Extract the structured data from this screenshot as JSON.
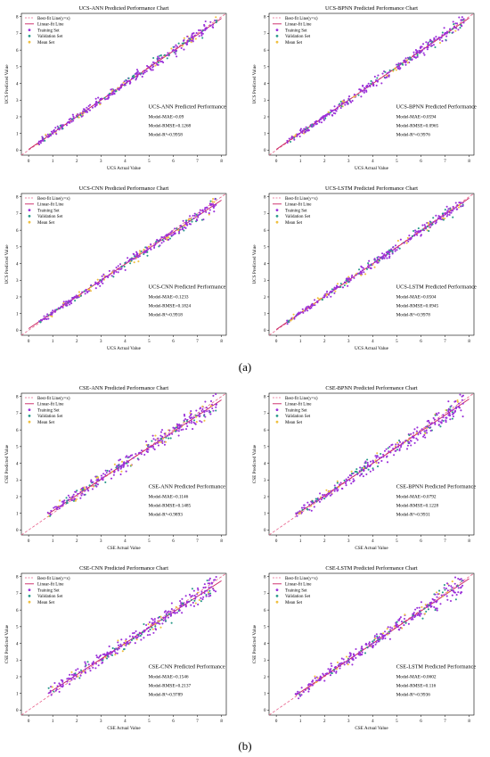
{
  "figure": {
    "group_a_label": "(a)",
    "group_b_label": "(b)"
  },
  "legend_labels": [
    "Best-fit Line(y=x)",
    "Linear-fit Line",
    "Training Set",
    "Validation Set",
    "Mean Set"
  ],
  "colors": {
    "best_fit": "#e8608a",
    "linear_fit": "#c82060",
    "training": "#9b30d9",
    "validation": "#2a9a8a",
    "mean": "#f0c040"
  },
  "chart_data": [
    {
      "type": "scatter",
      "title": "UCS-ANN Predicted Performance Chart",
      "xlabel": "UCS Actual Value",
      "ylabel": "UCS Predicted Value",
      "xlim": [
        -0.3,
        8.2
      ],
      "ylim": [
        -0.3,
        8.2
      ],
      "xticks": [
        0,
        1,
        2,
        3,
        4,
        5,
        6,
        7,
        8
      ],
      "yticks": [
        0,
        1,
        2,
        3,
        4,
        5,
        6,
        7,
        8
      ],
      "grid": false,
      "legend_position": "top-left",
      "series": [
        {
          "name": "Best-fit Line(y=x)",
          "x": [
            -0.3,
            8.2
          ],
          "y": [
            -0.3,
            8.2
          ]
        },
        {
          "name": "Linear-fit Line",
          "x": [
            0,
            8
          ],
          "y": [
            0.05,
            7.9
          ]
        }
      ],
      "annotation": {
        "heading": "UCS-ANN Predicted Performance",
        "lines": [
          "Model-MAE=0.09",
          "Model-RMSE=0.1268",
          "Model-R²=0.9958"
        ]
      }
    },
    {
      "type": "scatter",
      "title": "UCS-BPNN Predicted Performance Chart",
      "xlabel": "UCS Actual Value",
      "ylabel": "UCS Predicted Value",
      "xlim": [
        -0.3,
        8.2
      ],
      "ylim": [
        -0.3,
        8.2
      ],
      "xticks": [
        0,
        1,
        2,
        3,
        4,
        5,
        6,
        7,
        8
      ],
      "yticks": [
        0,
        1,
        2,
        3,
        4,
        5,
        6,
        7,
        8
      ],
      "grid": false,
      "legend_position": "top-left",
      "series": [
        {
          "name": "Best-fit Line(y=x)",
          "x": [
            -0.3,
            8.2
          ],
          "y": [
            -0.3,
            8.2
          ]
        },
        {
          "name": "Linear-fit Line",
          "x": [
            0,
            8
          ],
          "y": [
            0.05,
            7.92
          ]
        }
      ],
      "annotation": {
        "heading": "UCS-BPNN Predicted Performance",
        "lines": [
          "Model-MAE=0.0594",
          "Model-RMSE=0.0965",
          "Model-R²=0.9976"
        ]
      }
    },
    {
      "type": "scatter",
      "title": "UCS-CNN Predicted Performance Chart",
      "xlabel": "UCS Actual Value",
      "ylabel": "UCS Predicted Value",
      "xlim": [
        -0.3,
        8.2
      ],
      "ylim": [
        -0.3,
        8.2
      ],
      "xticks": [
        0,
        1,
        2,
        3,
        4,
        5,
        6,
        7,
        8
      ],
      "yticks": [
        0,
        1,
        2,
        3,
        4,
        5,
        6,
        7,
        8
      ],
      "grid": false,
      "legend_position": "top-left",
      "series": [
        {
          "name": "Best-fit Line(y=x)",
          "x": [
            -0.3,
            8.2
          ],
          "y": [
            -0.3,
            8.2
          ]
        },
        {
          "name": "Linear-fit Line",
          "x": [
            0,
            8
          ],
          "y": [
            0.1,
            7.8
          ]
        }
      ],
      "annotation": {
        "heading": "UCS-CNN Predicted Performance",
        "lines": [
          "Model-MAE=0.1233",
          "Model-RMSE=0.1824",
          "Model-R²=0.9918"
        ]
      }
    },
    {
      "type": "scatter",
      "title": "UCS-LSTM Predicted Performance Chart",
      "xlabel": "UCS Actual Value",
      "ylabel": "UCS Predicted Value",
      "xlim": [
        -0.3,
        8.2
      ],
      "ylim": [
        -0.3,
        8.2
      ],
      "xticks": [
        0,
        1,
        2,
        3,
        4,
        5,
        6,
        7,
        8
      ],
      "yticks": [
        0,
        1,
        2,
        3,
        4,
        5,
        6,
        7,
        8
      ],
      "grid": false,
      "legend_position": "top-left",
      "series": [
        {
          "name": "Best-fit Line(y=x)",
          "x": [
            -0.3,
            8.2
          ],
          "y": [
            -0.3,
            8.2
          ]
        },
        {
          "name": "Linear-fit Line",
          "x": [
            0,
            8
          ],
          "y": [
            0.05,
            7.92
          ]
        }
      ],
      "annotation": {
        "heading": "UCS-LSTM Predicted Performance",
        "lines": [
          "Model-MAE=0.0504",
          "Model-RMSE=0.0945",
          "Model-R²=0.9978"
        ]
      }
    },
    {
      "type": "scatter",
      "title": "CSE-ANN Predicted Performance Chart",
      "xlabel": "CSE Actual Value",
      "ylabel": "CSE Predicted Value",
      "xlim": [
        -0.3,
        8.2
      ],
      "ylim": [
        -0.3,
        8.2
      ],
      "xticks": [
        0,
        1,
        2,
        3,
        4,
        5,
        6,
        7,
        8
      ],
      "yticks": [
        0,
        1,
        2,
        3,
        4,
        5,
        6,
        7,
        8
      ],
      "grid": false,
      "legend_position": "top-left",
      "series": [
        {
          "name": "Best-fit Line(y=x)",
          "x": [
            -0.3,
            8.2
          ],
          "y": [
            -0.3,
            8.2
          ]
        },
        {
          "name": "Linear-fit Line",
          "x": [
            0.8,
            8
          ],
          "y": [
            0.95,
            7.8
          ]
        }
      ],
      "annotation": {
        "heading": "CSE-ANN Predicted Performance",
        "lines": [
          "Model-MAE=0.1146",
          "Model-RMSE=0.1485",
          "Model-R²=0.9893"
        ]
      }
    },
    {
      "type": "scatter",
      "title": "CSE-BPNN Predicted Performance Chart",
      "xlabel": "CSE Actual Value",
      "ylabel": "CSE Predicted Value",
      "xlim": [
        -0.3,
        8.2
      ],
      "ylim": [
        -0.3,
        8.2
      ],
      "xticks": [
        0,
        1,
        2,
        3,
        4,
        5,
        6,
        7,
        8
      ],
      "yticks": [
        0,
        1,
        2,
        3,
        4,
        5,
        6,
        7,
        8
      ],
      "grid": false,
      "legend_position": "top-left",
      "series": [
        {
          "name": "Best-fit Line(y=x)",
          "x": [
            -0.3,
            8.2
          ],
          "y": [
            -0.3,
            8.2
          ]
        },
        {
          "name": "Linear-fit Line",
          "x": [
            0.8,
            8
          ],
          "y": [
            0.9,
            7.85
          ]
        }
      ],
      "annotation": {
        "heading": "CSE-BPNN Predicted Performance",
        "lines": [
          "Model-MAE=0.0792",
          "Model-RMSE=0.1228",
          "Model-R²=0.9931"
        ]
      }
    },
    {
      "type": "scatter",
      "title": "CSE-CNN Predicted Performance Chart",
      "xlabel": "CSE Actual Value",
      "ylabel": "CSE Predicted Value",
      "xlim": [
        -0.3,
        8.2
      ],
      "ylim": [
        -0.3,
        8.2
      ],
      "xticks": [
        0,
        1,
        2,
        3,
        4,
        5,
        6,
        7,
        8
      ],
      "yticks": [
        0,
        1,
        2,
        3,
        4,
        5,
        6,
        7,
        8
      ],
      "grid": false,
      "legend_position": "top-left",
      "series": [
        {
          "name": "Best-fit Line(y=x)",
          "x": [
            -0.3,
            8.2
          ],
          "y": [
            -0.3,
            8.2
          ]
        },
        {
          "name": "Linear-fit Line",
          "x": [
            0.8,
            8
          ],
          "y": [
            1.0,
            7.75
          ]
        }
      ],
      "annotation": {
        "heading": "CSE-CNN Predicted Performance",
        "lines": [
          "Model-MAE=0.1546",
          "Model-RMSE=0.2137",
          "Model-R²=0.9789"
        ]
      }
    },
    {
      "type": "scatter",
      "title": "CSE-LSTM Predicted Performance Chart",
      "xlabel": "CSE Actual Value",
      "ylabel": "CSE Predicted Value",
      "xlim": [
        -0.3,
        8.2
      ],
      "ylim": [
        -0.3,
        8.2
      ],
      "xticks": [
        0,
        1,
        2,
        3,
        4,
        5,
        6,
        7,
        8
      ],
      "yticks": [
        0,
        1,
        2,
        3,
        4,
        5,
        6,
        7,
        8
      ],
      "grid": false,
      "legend_position": "top-left",
      "series": [
        {
          "name": "Best-fit Line(y=x)",
          "x": [
            -0.3,
            8.2
          ],
          "y": [
            -0.3,
            8.2
          ]
        },
        {
          "name": "Linear-fit Line",
          "x": [
            0.8,
            8
          ],
          "y": [
            0.88,
            7.88
          ]
        }
      ],
      "annotation": {
        "heading": "CSE-LSTM Predicted Performance",
        "lines": [
          "Model-MAE=0.0602",
          "Model-RMSE=0.116",
          "Model-R²=0.9936"
        ]
      }
    }
  ]
}
